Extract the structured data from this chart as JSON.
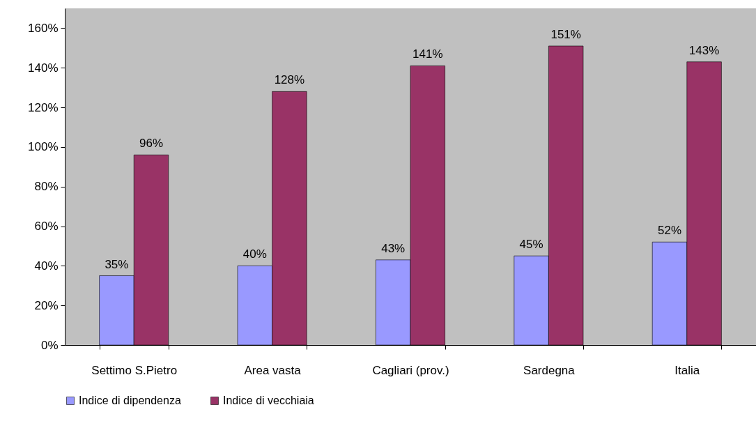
{
  "chart_data": {
    "type": "bar",
    "categories": [
      "Settimo S.Pietro",
      "Area vasta",
      "Cagliari (prov.)",
      "Sardegna",
      "Italia"
    ],
    "series": [
      {
        "name": "Indice di dipendenza",
        "color": "#9999ff",
        "values": [
          35,
          40,
          43,
          45,
          52
        ],
        "value_labels": [
          "35%",
          "40%",
          "43%",
          "45%",
          "52%"
        ]
      },
      {
        "name": "Indice di vecchiaia",
        "color": "#993366",
        "values": [
          96,
          128,
          141,
          151,
          143
        ],
        "value_labels": [
          "96%",
          "128%",
          "141%",
          "151%",
          "143%"
        ]
      }
    ],
    "ylim": [
      0,
      170
    ],
    "yticks": [
      {
        "value": 0,
        "label": "0%"
      },
      {
        "value": 20,
        "label": "20%"
      },
      {
        "value": 40,
        "label": "40%"
      },
      {
        "value": 60,
        "label": "60%"
      },
      {
        "value": 80,
        "label": "80%"
      },
      {
        "value": 100,
        "label": "100%"
      },
      {
        "value": 120,
        "label": "120%"
      },
      {
        "value": 140,
        "label": "140%"
      },
      {
        "value": 160,
        "label": "160%"
      }
    ],
    "grid": false,
    "legend": "bottom"
  }
}
